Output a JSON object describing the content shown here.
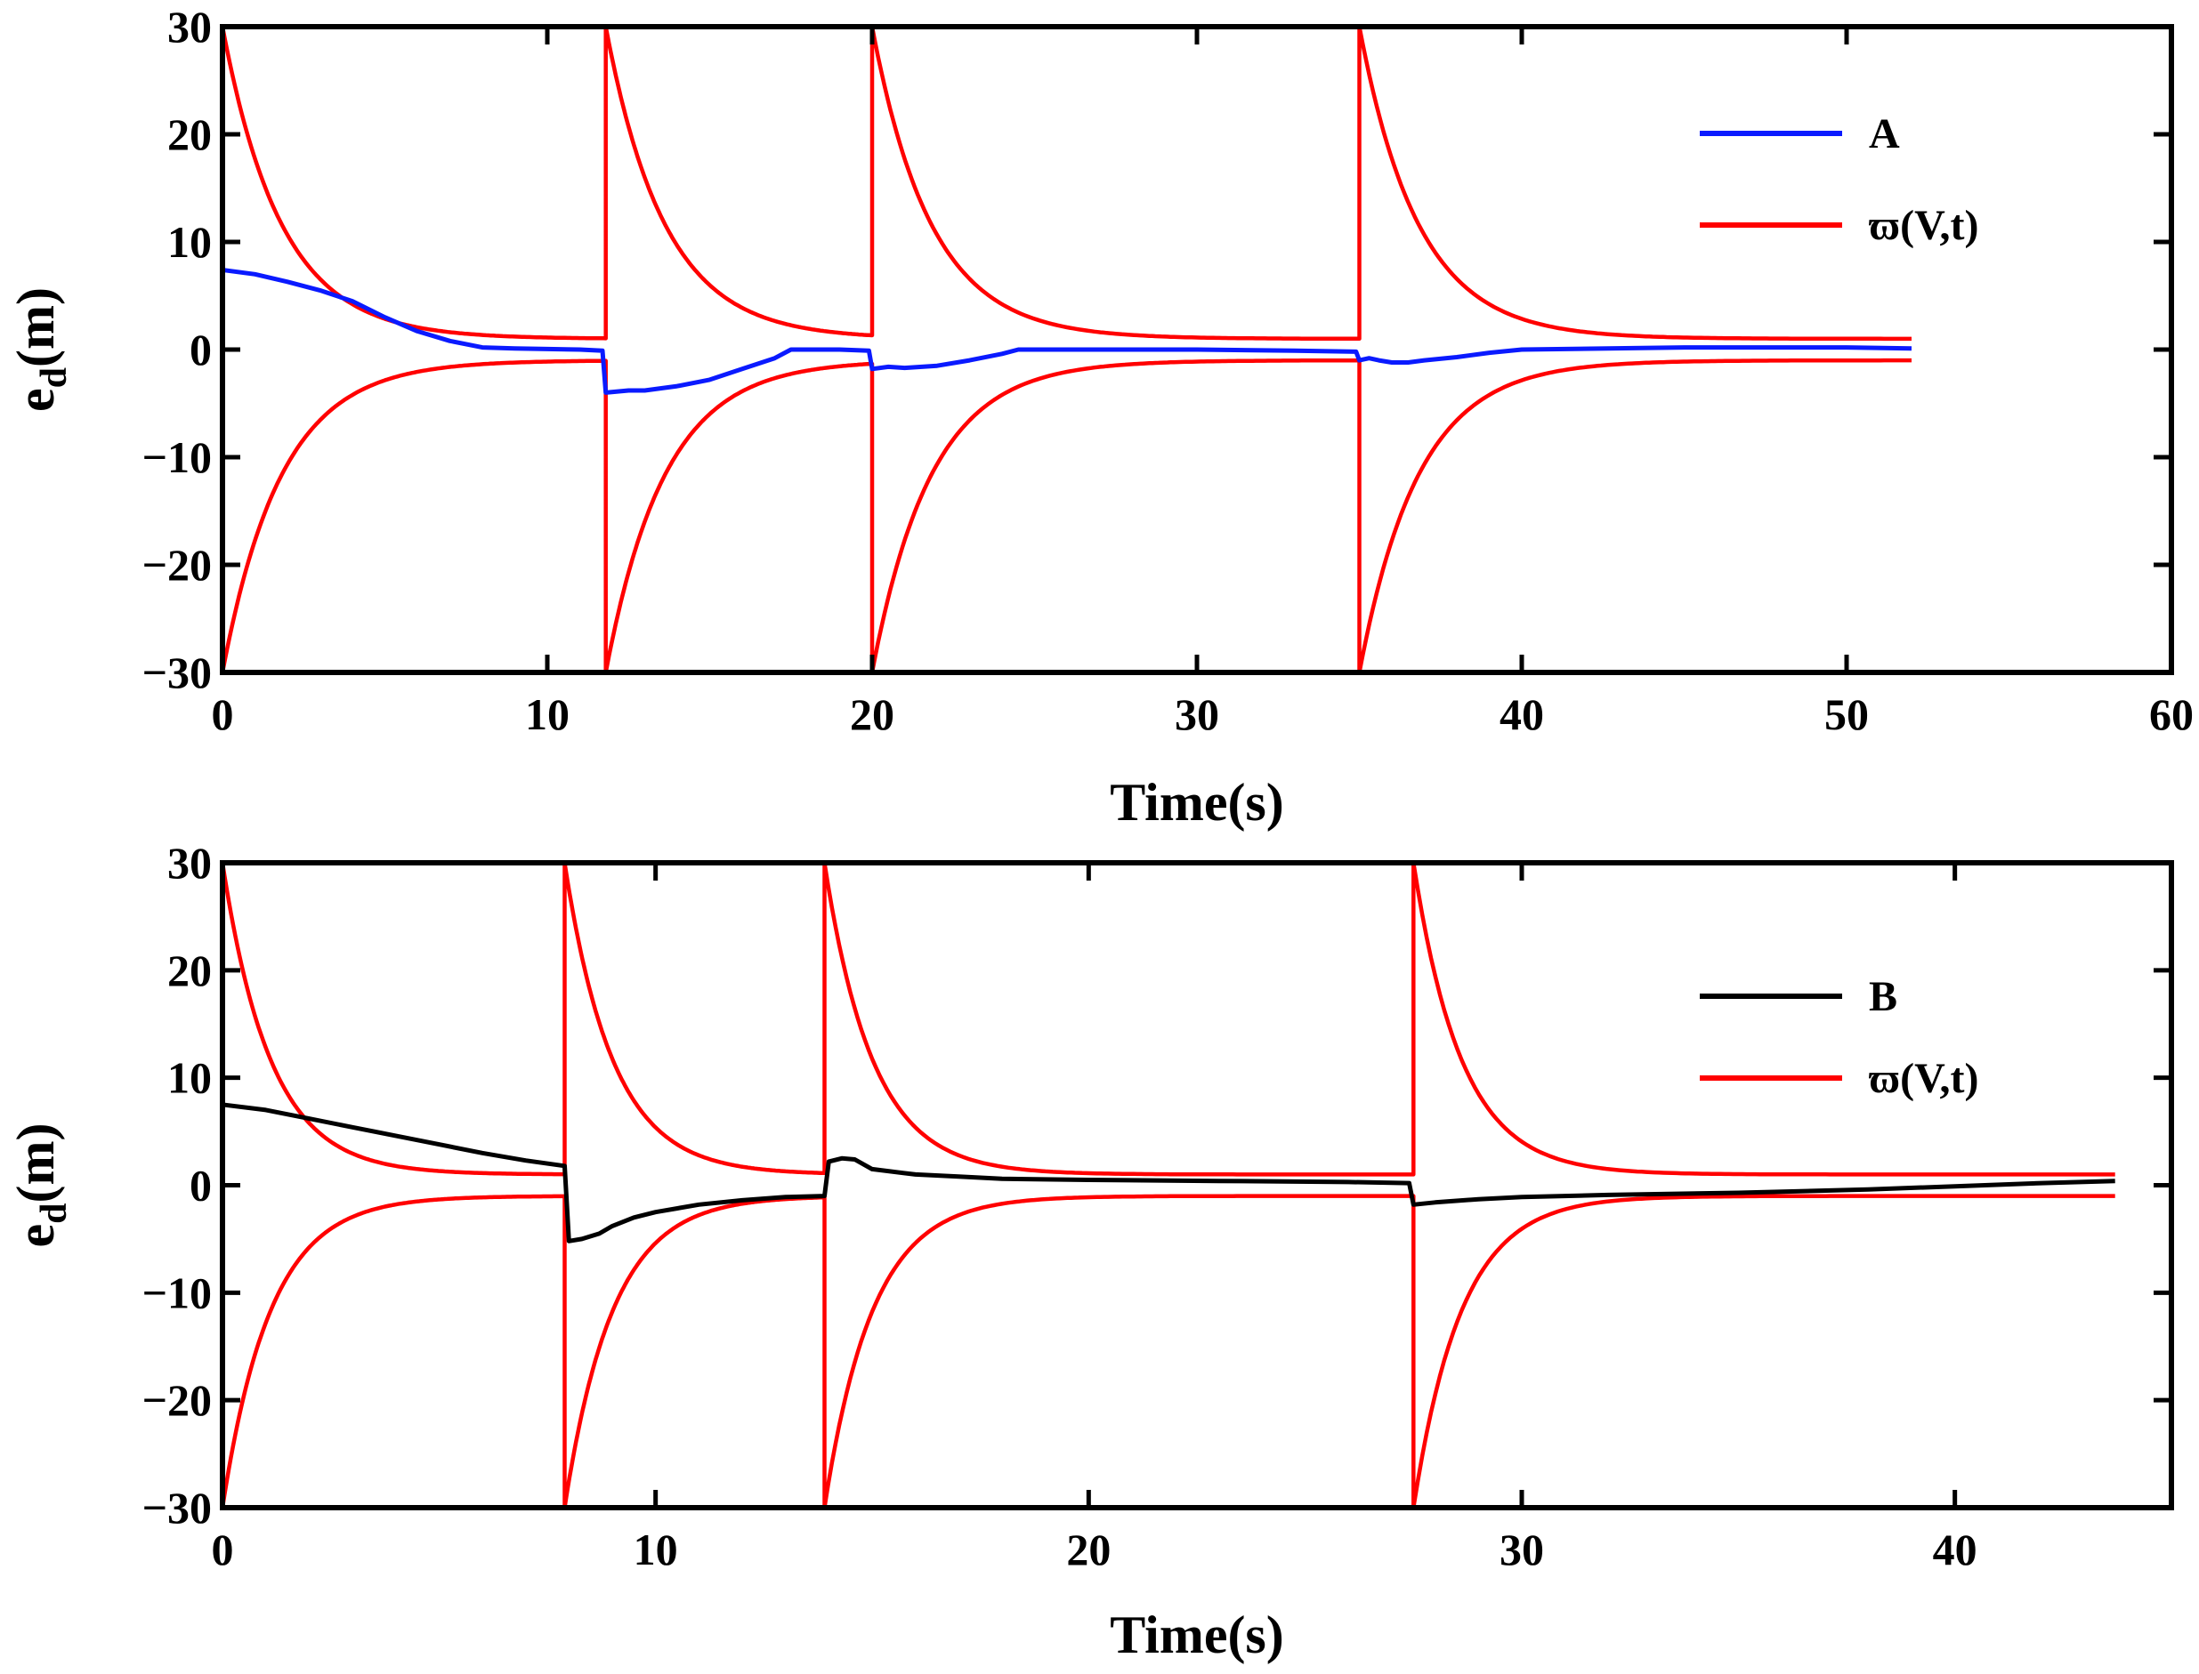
{
  "colors": {
    "series_a": "#0a1aff",
    "series_b": "#000000",
    "bound": "#ff0000",
    "axes": "#000000",
    "background": "#ffffff"
  },
  "chart_data": [
    {
      "type": "line",
      "title": "",
      "xlabel": "Time(s)",
      "ylabel_main": "e",
      "ylabel_sub": "d",
      "ylabel_tail": "(m)",
      "xlim": [
        0,
        60
      ],
      "ylim": [
        -30,
        30
      ],
      "xticks": [
        0,
        10,
        20,
        30,
        40,
        50,
        60
      ],
      "yticks": [
        -30,
        -20,
        -10,
        0,
        10,
        20,
        30
      ],
      "xtick_labels": [
        "0",
        "10",
        "20",
        "30",
        "40",
        "50",
        "60"
      ],
      "ytick_labels": [
        "−30",
        "−20",
        "−10",
        "0",
        "10",
        "20",
        "30"
      ],
      "grid": false,
      "legend_position": "top-right",
      "legend": [
        "A",
        "ϖ(V,t)"
      ],
      "series": [
        {
          "name": "A",
          "color_key": "series_a",
          "x": [
            0,
            1,
            2,
            3,
            4,
            5,
            6,
            7,
            8,
            9,
            10,
            11,
            11.7,
            11.8,
            12.5,
            13,
            14,
            15,
            16,
            17,
            17.5,
            18,
            19,
            19.9,
            20,
            20.5,
            21,
            22,
            23,
            24,
            24.5,
            25,
            27,
            30,
            33,
            34.9,
            35,
            35.3,
            35.6,
            36,
            36.5,
            37,
            38,
            39,
            40,
            45,
            50,
            52
          ],
          "y": [
            7.4,
            7,
            6.3,
            5.5,
            4.5,
            3,
            1.7,
            0.8,
            0.2,
            0.1,
            0.05,
            0.0,
            -0.1,
            -4,
            -3.8,
            -3.8,
            -3.4,
            -2.8,
            -1.8,
            -0.8,
            0,
            0,
            0,
            -0.1,
            -1.8,
            -1.6,
            -1.7,
            -1.5,
            -1,
            -0.4,
            0,
            0,
            0,
            0,
            -0.1,
            -0.2,
            -1,
            -0.8,
            -1,
            -1.2,
            -1.2,
            -1,
            -0.7,
            -0.3,
            0,
            0.2,
            0.2,
            0.1
          ]
        },
        {
          "name": "ϖ(V,t)",
          "color_key": "bound",
          "kind": "envelope",
          "resets_at": [
            0,
            11.8,
            20,
            35
          ],
          "peak": 30,
          "floor": 1,
          "decay_rate": 0.55,
          "end_x": 52
        }
      ]
    },
    {
      "type": "line",
      "title": "",
      "xlabel": "Time(s)",
      "ylabel_main": "e",
      "ylabel_sub": "d",
      "ylabel_tail": "(m)",
      "xlim": [
        0,
        45
      ],
      "ylim": [
        -30,
        30
      ],
      "xticks": [
        0,
        10,
        20,
        30,
        40
      ],
      "yticks": [
        -30,
        -20,
        -10,
        0,
        10,
        20,
        30
      ],
      "xtick_labels": [
        "0",
        "10",
        "20",
        "30",
        "40"
      ],
      "ytick_labels": [
        "−30",
        "−20",
        "−10",
        "0",
        "10",
        "20",
        "30"
      ],
      "grid": false,
      "legend_position": "top-right",
      "legend": [
        "B",
        "ϖ(V,t)"
      ],
      "series": [
        {
          "name": "B",
          "color_key": "series_b",
          "x": [
            0,
            1,
            2,
            3,
            4,
            5,
            6,
            7,
            7.9,
            8,
            8.3,
            8.7,
            9,
            9.5,
            10,
            11,
            12,
            13,
            13.9,
            14,
            14.3,
            14.6,
            15,
            16,
            17,
            18,
            20,
            23,
            26,
            27.4,
            27.5,
            28,
            29,
            30,
            32,
            35,
            38,
            40,
            42,
            43.7
          ],
          "y": [
            7.5,
            7,
            6.2,
            5.4,
            4.6,
            3.8,
            3,
            2.3,
            1.8,
            -5.2,
            -5,
            -4.5,
            -3.8,
            -3,
            -2.5,
            -1.8,
            -1.4,
            -1.1,
            -1,
            2.2,
            2.5,
            2.4,
            1.5,
            1,
            0.8,
            0.6,
            0.5,
            0.4,
            0.3,
            0.2,
            -1.8,
            -1.6,
            -1.3,
            -1.1,
            -0.9,
            -0.7,
            -0.4,
            -0.1,
            0.2,
            0.4
          ]
        },
        {
          "name": "ϖ(V,t)",
          "color_key": "bound",
          "kind": "envelope",
          "resets_at": [
            0,
            7.9,
            13.9,
            27.5
          ],
          "peak": 30,
          "floor": 1,
          "decay_rate": 0.9,
          "end_x": 43.7
        }
      ]
    }
  ]
}
